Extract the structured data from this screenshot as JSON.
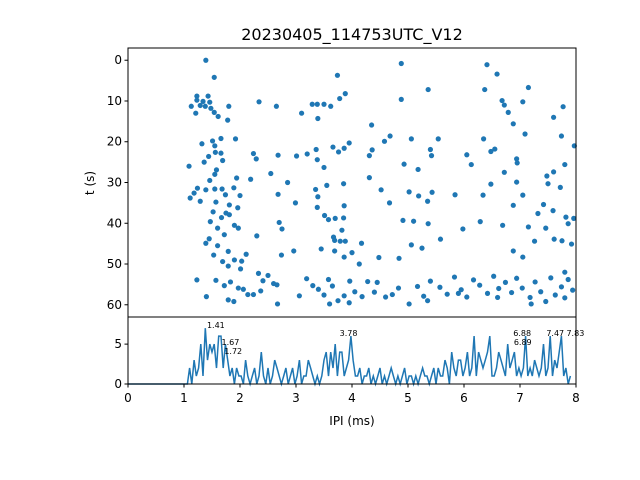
{
  "chart_data": [
    {
      "type": "scatter",
      "title": "20230405_114753UTC_V12",
      "xlabel": "",
      "ylabel": "t (s)",
      "xlim": [
        0,
        8
      ],
      "ylim": [
        63,
        -3
      ],
      "yticks": [
        "0",
        "10",
        "20",
        "30",
        "40",
        "50",
        "60"
      ],
      "color": "#1f77b4",
      "points": [
        [
          1.39,
          0
        ],
        [
          1.54,
          4.2
        ],
        [
          1.23,
          8.8
        ],
        [
          1.43,
          8.8
        ],
        [
          1.23,
          9.8
        ],
        [
          1.34,
          10.1
        ],
        [
          1.46,
          10.3
        ],
        [
          1.29,
          11.1
        ],
        [
          1.13,
          11.3
        ],
        [
          1.38,
          11.3
        ],
        [
          1.48,
          11.8
        ],
        [
          1.8,
          11.3
        ],
        [
          1.21,
          13
        ],
        [
          1.54,
          12.8
        ],
        [
          1.61,
          13.8
        ],
        [
          1.78,
          14.7
        ],
        [
          1.66,
          19.2
        ],
        [
          1.51,
          19.8
        ],
        [
          1.55,
          21
        ],
        [
          1.92,
          19.3
        ],
        [
          1.32,
          20.5
        ],
        [
          1.56,
          22.6
        ],
        [
          1.66,
          22.8
        ],
        [
          1.44,
          23.6
        ],
        [
          1.69,
          24.6
        ],
        [
          1.36,
          25
        ],
        [
          1.58,
          26.9
        ],
        [
          1.09,
          26
        ],
        [
          1.55,
          28
        ],
        [
          1.46,
          29.5
        ],
        [
          1.94,
          28.9
        ],
        [
          1.24,
          31.4
        ],
        [
          1.39,
          31.8
        ],
        [
          1.55,
          31.6
        ],
        [
          1.68,
          31.6
        ],
        [
          1.89,
          31.3
        ],
        [
          1.18,
          32.6
        ],
        [
          1.74,
          33
        ],
        [
          2.0,
          33.2
        ],
        [
          1.11,
          33.8
        ],
        [
          1.29,
          34.6
        ],
        [
          1.57,
          34.8
        ],
        [
          1.81,
          35.5
        ],
        [
          1.96,
          36.2
        ],
        [
          1.52,
          37.2
        ],
        [
          1.75,
          37.5
        ],
        [
          1.67,
          38.6
        ],
        [
          1.81,
          37.9
        ],
        [
          1.47,
          39.6
        ],
        [
          1.9,
          40.5
        ],
        [
          1.6,
          41.2
        ],
        [
          1.97,
          41.2
        ],
        [
          1.72,
          42.8
        ],
        [
          1.45,
          43.8
        ],
        [
          1.39,
          44.9
        ],
        [
          1.6,
          45.5
        ],
        [
          1.79,
          46.9
        ],
        [
          1.53,
          47.8
        ],
        [
          1.69,
          49.4
        ],
        [
          1.9,
          49
        ],
        [
          2.03,
          49.3
        ],
        [
          1.79,
          50.5
        ],
        [
          2.01,
          51.2
        ],
        [
          1.57,
          54
        ],
        [
          1.23,
          53.9
        ],
        [
          1.83,
          54.4
        ],
        [
          1.72,
          55.3
        ],
        [
          1.97,
          55.9
        ],
        [
          2.06,
          56.2
        ],
        [
          1.4,
          58
        ],
        [
          1.79,
          58.8
        ],
        [
          1.89,
          59.2
        ],
        [
          2.34,
          10.2
        ],
        [
          2.65,
          11.3
        ],
        [
          2.24,
          22.9
        ],
        [
          2.29,
          24.2
        ],
        [
          2.68,
          23.3
        ],
        [
          2.55,
          27.8
        ],
        [
          2.85,
          30
        ],
        [
          2.19,
          29.2
        ],
        [
          2.68,
          32.9
        ],
        [
          2.99,
          35
        ],
        [
          2.7,
          39.8
        ],
        [
          2.75,
          41.4
        ],
        [
          2.96,
          46.8
        ],
        [
          2.74,
          47.8
        ],
        [
          2.3,
          43.1
        ],
        [
          2.11,
          47.6
        ],
        [
          2.33,
          52.3
        ],
        [
          2.5,
          52.8
        ],
        [
          2.41,
          54.1
        ],
        [
          2.6,
          54.8
        ],
        [
          2.66,
          55.1
        ],
        [
          2.14,
          57.5
        ],
        [
          2.24,
          57.5
        ],
        [
          2.37,
          56.6
        ],
        [
          2.67,
          59.8
        ],
        [
          3.1,
          13
        ],
        [
          3.29,
          10.8
        ],
        [
          3.38,
          10.8
        ],
        [
          3.5,
          10.8
        ],
        [
          3.62,
          11.3
        ],
        [
          3.78,
          9.4
        ],
        [
          3.88,
          8.2
        ],
        [
          3.74,
          3.7
        ],
        [
          3.39,
          14.3
        ],
        [
          3.01,
          23.5
        ],
        [
          3.2,
          23
        ],
        [
          3.36,
          21.9
        ],
        [
          3.38,
          24.4
        ],
        [
          3.5,
          26.3
        ],
        [
          3.66,
          21.3
        ],
        [
          3.76,
          22.5
        ],
        [
          3.86,
          21.6
        ],
        [
          3.95,
          20.3
        ],
        [
          3.35,
          31.7
        ],
        [
          3.55,
          30.7
        ],
        [
          3.85,
          30.3
        ],
        [
          3.39,
          33.5
        ],
        [
          3.51,
          38.1
        ],
        [
          3.7,
          38.8
        ],
        [
          3.38,
          36.1
        ],
        [
          3.58,
          39.1
        ],
        [
          3.86,
          35.7
        ],
        [
          3.85,
          38.7
        ],
        [
          3.82,
          41.7
        ],
        [
          3.67,
          43.4
        ],
        [
          3.69,
          44.2
        ],
        [
          3.79,
          44.4
        ],
        [
          3.88,
          44.4
        ],
        [
          4.17,
          44.9
        ],
        [
          3.45,
          46.3
        ],
        [
          3.69,
          46.8
        ],
        [
          3.86,
          48.3
        ],
        [
          4.0,
          47.2
        ],
        [
          4.13,
          50
        ],
        [
          4.48,
          48.4
        ],
        [
          4.35,
          15.9
        ],
        [
          4.36,
          22
        ],
        [
          4.31,
          23.4
        ],
        [
          4.58,
          19.9
        ],
        [
          4.68,
          18.6
        ],
        [
          4.31,
          28.8
        ],
        [
          4.52,
          31.8
        ],
        [
          4.67,
          35
        ],
        [
          4.93,
          25.5
        ],
        [
          4.88,
          0.8
        ],
        [
          4.88,
          9.6
        ],
        [
          5.06,
          19.3
        ],
        [
          5.18,
          26.8
        ],
        [
          5.36,
          7.2
        ],
        [
          5.4,
          21.9
        ],
        [
          5.42,
          23.4
        ],
        [
          5.54,
          19.3
        ],
        [
          5.02,
          32.3
        ],
        [
          5.19,
          33.3
        ],
        [
          5.43,
          32.4
        ],
        [
          4.91,
          39.3
        ],
        [
          5.1,
          39.5
        ],
        [
          5.35,
          34.6
        ],
        [
          5.36,
          40.1
        ],
        [
          5.58,
          43.9
        ],
        [
          5.06,
          45.3
        ],
        [
          4.84,
          48.6
        ],
        [
          5.25,
          46.1
        ],
        [
          5.84,
          33
        ],
        [
          5.98,
          41.4
        ],
        [
          6.05,
          23.2
        ],
        [
          6.13,
          25.6
        ],
        [
          6.35,
          19.3
        ],
        [
          6.34,
          33.1
        ],
        [
          6.48,
          22.4
        ],
        [
          6.55,
          21.8
        ],
        [
          6.48,
          30.4
        ],
        [
          6.41,
          1.1
        ],
        [
          6.59,
          3.4
        ],
        [
          6.37,
          7.2
        ],
        [
          6.68,
          9.9
        ],
        [
          6.79,
          12.8
        ],
        [
          6.72,
          11
        ],
        [
          6.88,
          15.6
        ],
        [
          7.05,
          10.2
        ],
        [
          7.15,
          6.7
        ],
        [
          7.09,
          18.1
        ],
        [
          6.94,
          24.2
        ],
        [
          6.95,
          25.2
        ],
        [
          6.94,
          29.9
        ],
        [
          6.88,
          35.6
        ],
        [
          7.05,
          33.1
        ],
        [
          6.88,
          46.8
        ],
        [
          7.05,
          48.3
        ],
        [
          7.15,
          40.9
        ],
        [
          7.26,
          44.4
        ],
        [
          7.32,
          37.6
        ],
        [
          7.42,
          35.4
        ],
        [
          7.5,
          30.3
        ],
        [
          7.59,
          36.9
        ],
        [
          7.48,
          28.4
        ],
        [
          7.72,
          31.2
        ],
        [
          7.82,
          38.5
        ],
        [
          7.61,
          43.9
        ],
        [
          7.75,
          44.3
        ],
        [
          7.86,
          40.1
        ],
        [
          7.46,
          41.2
        ],
        [
          7.6,
          27.4
        ],
        [
          7.74,
          18.6
        ],
        [
          7.6,
          14
        ],
        [
          7.77,
          11.4
        ],
        [
          7.8,
          25.6
        ],
        [
          7.97,
          21
        ],
        [
          7.96,
          38.8
        ],
        [
          7.92,
          45.1
        ],
        [
          6.72,
          27.5
        ],
        [
          6.69,
          40.5
        ],
        [
          6.29,
          39.6
        ],
        [
          7.8,
          52
        ],
        [
          3.06,
          57.8
        ],
        [
          3.19,
          53.6
        ],
        [
          3.3,
          55.3
        ],
        [
          3.4,
          56.2
        ],
        [
          3.5,
          57.6
        ],
        [
          3.58,
          53.8
        ],
        [
          3.65,
          55.4
        ],
        [
          3.75,
          59
        ],
        [
          3.86,
          57.8
        ],
        [
          3.96,
          54.2
        ],
        [
          4.05,
          56.8
        ],
        [
          4.18,
          58
        ],
        [
          4.28,
          54.3
        ],
        [
          4.4,
          56.9
        ],
        [
          4.6,
          58.1
        ],
        [
          4.72,
          57.5
        ],
        [
          4.83,
          55.9
        ],
        [
          5.02,
          59.8
        ],
        [
          5.17,
          55.5
        ],
        [
          5.28,
          57.9
        ],
        [
          5.4,
          54.2
        ],
        [
          5.57,
          55.7
        ],
        [
          5.7,
          57.4
        ],
        [
          5.83,
          53.2
        ],
        [
          5.95,
          56.3
        ],
        [
          6.05,
          58.1
        ],
        [
          6.17,
          53.9
        ],
        [
          6.28,
          55.2
        ],
        [
          6.42,
          57.2
        ],
        [
          6.53,
          53
        ],
        [
          6.62,
          56
        ],
        [
          6.74,
          54.5
        ],
        [
          6.85,
          57
        ],
        [
          6.94,
          53.5
        ],
        [
          7.04,
          55.9
        ],
        [
          7.18,
          58.2
        ],
        [
          7.27,
          54.4
        ],
        [
          7.37,
          56.8
        ],
        [
          7.46,
          59.2
        ],
        [
          7.55,
          53.4
        ],
        [
          7.63,
          57.6
        ],
        [
          7.74,
          55.6
        ],
        [
          7.86,
          53.8
        ],
        [
          7.94,
          56.4
        ],
        [
          3.6,
          59.8
        ],
        [
          3.95,
          59.5
        ],
        [
          5.35,
          59
        ],
        [
          6.6,
          58.2
        ],
        [
          7.2,
          59.8
        ],
        [
          7.8,
          58.3
        ],
        [
          4.45,
          54.5
        ],
        [
          5.9,
          57.2
        ]
      ]
    },
    {
      "type": "line",
      "xlabel": "IPI (ms)",
      "ylabel": "",
      "xlim": [
        0,
        8
      ],
      "ylim": [
        0,
        8.4
      ],
      "xticks": [
        "0",
        "1",
        "2",
        "3",
        "4",
        "5",
        "6",
        "7",
        "8"
      ],
      "yticks": [
        "0",
        "5"
      ],
      "color": "#1f77b4",
      "bin_width": 0.04,
      "annotations": [
        {
          "x": 1.41,
          "y": 7,
          "label": "1.41"
        },
        {
          "x": 1.67,
          "y": 6,
          "label": "1.67"
        },
        {
          "x": 1.72,
          "y": 6,
          "label": "1.72"
        },
        {
          "x": 3.78,
          "y": 6,
          "label": "3.78"
        },
        {
          "x": 6.88,
          "y": 6,
          "label": "6.88"
        },
        {
          "x": 6.89,
          "y": 6,
          "label": "6.89"
        },
        {
          "x": 7.47,
          "y": 6,
          "label": "7.47"
        },
        {
          "x": 7.83,
          "y": 6,
          "label": "7.83"
        }
      ],
      "values": [
        0,
        0,
        0,
        0,
        0,
        0,
        0,
        0,
        0,
        0,
        0,
        0,
        0,
        0,
        0,
        0,
        0,
        0,
        0,
        0,
        0,
        0,
        0,
        0,
        0,
        0,
        0,
        2,
        0,
        3,
        1,
        2,
        5,
        1,
        7,
        3,
        5,
        4,
        5,
        2,
        6,
        6,
        2,
        5,
        3,
        1,
        2,
        0,
        2,
        1,
        1,
        0,
        3,
        1,
        0,
        1,
        2,
        0,
        1,
        4,
        1,
        0,
        2,
        0,
        1,
        3,
        2,
        1,
        0,
        1,
        2,
        0,
        1,
        2,
        0,
        1,
        3,
        0,
        1,
        1,
        3,
        2,
        1,
        0,
        1,
        0,
        1,
        3,
        4,
        1,
        4,
        2,
        5,
        1,
        4,
        4,
        1,
        2,
        3,
        6,
        3,
        1,
        1,
        2,
        0,
        1,
        1,
        2,
        0,
        1,
        0,
        1,
        2,
        0,
        1,
        0,
        1,
        2,
        1,
        0,
        1,
        0,
        1,
        2,
        0,
        1,
        1,
        0,
        1,
        0,
        1,
        2,
        1,
        1,
        0,
        1,
        2,
        0,
        2,
        1,
        1,
        3,
        2,
        0,
        4,
        2,
        1,
        3,
        3,
        1,
        2,
        4,
        1,
        2,
        6,
        1,
        4,
        3,
        2,
        3,
        4,
        6,
        1,
        1,
        2,
        4,
        3,
        2,
        1,
        5,
        2,
        3,
        4,
        1,
        2,
        1,
        2,
        6,
        1,
        2,
        1,
        3,
        2,
        1,
        2,
        5,
        1,
        2,
        6,
        1,
        3,
        2,
        4,
        6,
        1,
        2,
        0,
        1
      ]
    }
  ]
}
